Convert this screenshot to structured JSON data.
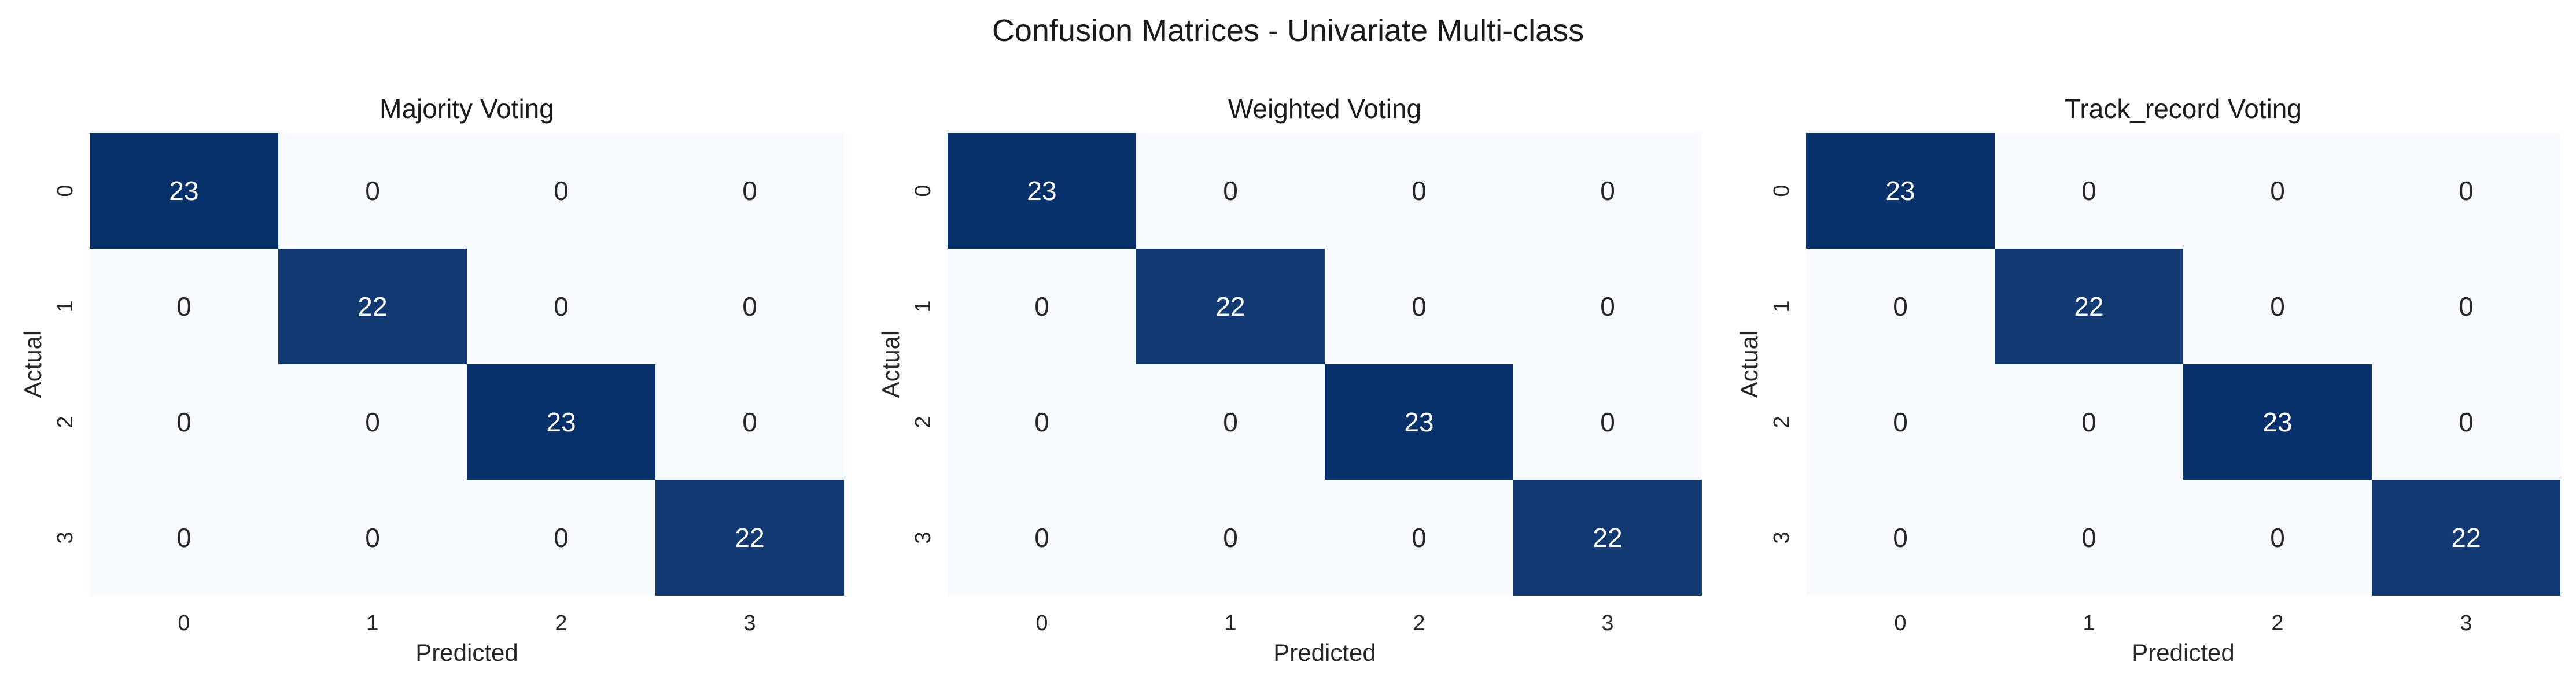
{
  "figure": {
    "suptitle": "Confusion Matrices - Univariate Multi-class"
  },
  "colors": {
    "low": "#f7fbff",
    "high": "#08306b",
    "light_text": "#262626",
    "dark_text": "#ffffff"
  },
  "chart_data": [
    {
      "type": "heatmap",
      "title": "Majority Voting",
      "xlabel": "Predicted",
      "ylabel": "Actual",
      "x_ticks": [
        "0",
        "1",
        "2",
        "3"
      ],
      "y_ticks": [
        "0",
        "1",
        "2",
        "3"
      ],
      "values": [
        [
          23,
          0,
          0,
          0
        ],
        [
          0,
          22,
          0,
          0
        ],
        [
          0,
          0,
          23,
          0
        ],
        [
          0,
          0,
          0,
          22
        ]
      ],
      "colormap": "Blues",
      "colorbar": false
    },
    {
      "type": "heatmap",
      "title": "Weighted Voting",
      "xlabel": "Predicted",
      "ylabel": "Actual",
      "x_ticks": [
        "0",
        "1",
        "2",
        "3"
      ],
      "y_ticks": [
        "0",
        "1",
        "2",
        "3"
      ],
      "values": [
        [
          23,
          0,
          0,
          0
        ],
        [
          0,
          22,
          0,
          0
        ],
        [
          0,
          0,
          23,
          0
        ],
        [
          0,
          0,
          0,
          22
        ]
      ],
      "colormap": "Blues",
      "colorbar": false
    },
    {
      "type": "heatmap",
      "title": "Track_record Voting",
      "xlabel": "Predicted",
      "ylabel": "Actual",
      "x_ticks": [
        "0",
        "1",
        "2",
        "3"
      ],
      "y_ticks": [
        "0",
        "1",
        "2",
        "3"
      ],
      "values": [
        [
          23,
          0,
          0,
          0
        ],
        [
          0,
          22,
          0,
          0
        ],
        [
          0,
          0,
          23,
          0
        ],
        [
          0,
          0,
          0,
          22
        ]
      ],
      "colormap": "Blues",
      "colorbar": false
    }
  ]
}
